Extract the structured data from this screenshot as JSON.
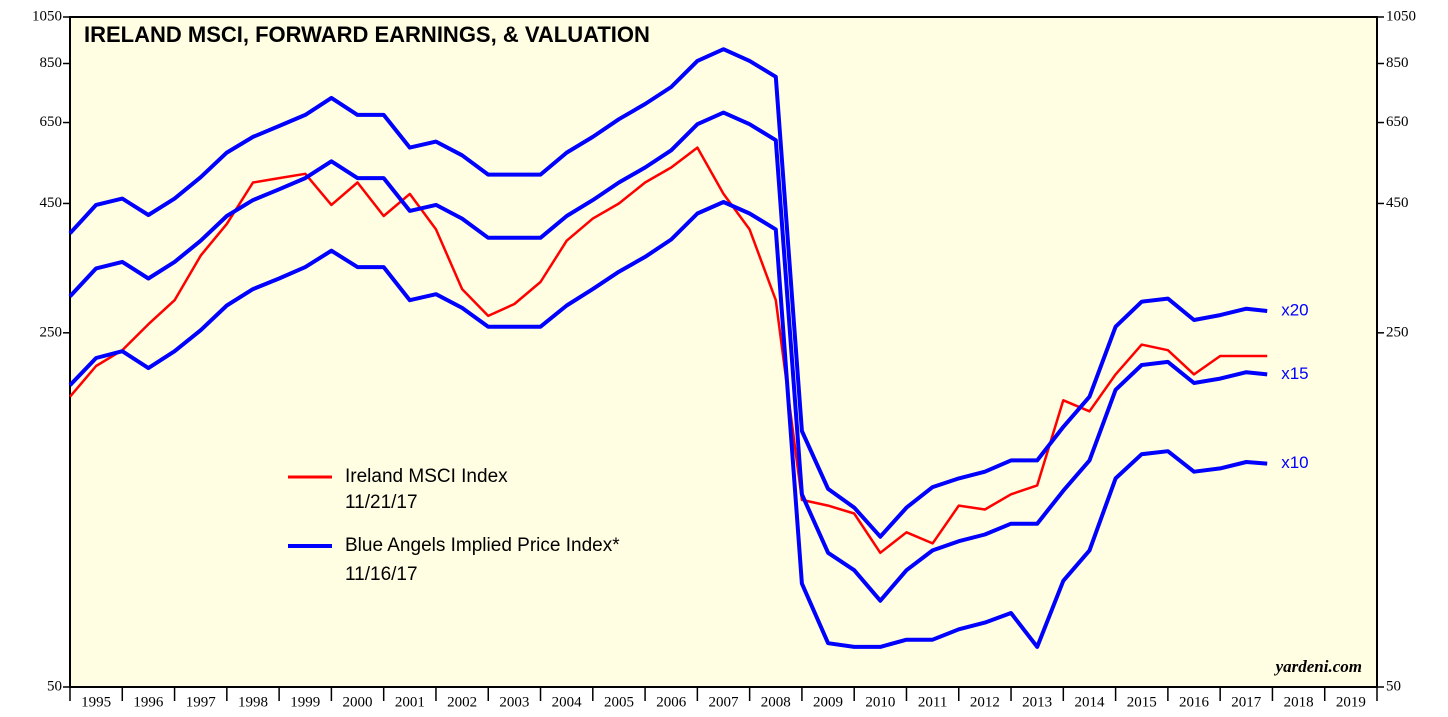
{
  "chart_data": {
    "type": "line",
    "title": "IRELAND MSCI, FORWARD EARNINGS, & VALUATION",
    "source": "yardeni.com",
    "log_scale": true,
    "categories": [
      "1995",
      "1996",
      "1997",
      "1998",
      "1999",
      "2000",
      "2001",
      "2002",
      "2003",
      "2004",
      "2005",
      "2006",
      "2007",
      "2008",
      "2009",
      "2010",
      "2011",
      "2012",
      "2013",
      "2014",
      "2015",
      "2016",
      "2017",
      "2018",
      "2019"
    ],
    "xlim": [
      1995,
      2020
    ],
    "x": [
      1995,
      1995.5,
      1996,
      1996.5,
      1997,
      1997.5,
      1998,
      1998.5,
      1999,
      1999.5,
      2000,
      2000.5,
      2001,
      2001.5,
      2002,
      2002.5,
      2003,
      2003.5,
      2004,
      2004.5,
      2005,
      2005.5,
      2006,
      2006.5,
      2007,
      2007.5,
      2008,
      2008.5,
      2009,
      2009.5,
      2010,
      2010.5,
      2011,
      2011.5,
      2012,
      2012.5,
      2013,
      2013.5,
      2014,
      2014.5,
      2015,
      2015.5,
      2016,
      2016.5,
      2017,
      2017.5,
      2017.9
    ],
    "ylim": [
      50,
      1050
    ],
    "yticks": [
      50,
      250,
      450,
      650,
      850,
      1050
    ],
    "series": [
      {
        "name": "Ireland MSCI Index",
        "color": "#ff0000",
        "values": [
          187,
          215,
          231,
          260,
          290,
          355,
          410,
          495,
          505,
          515,
          447,
          495,
          425,
          470,
          400,
          305,
          270,
          285,
          315,
          380,
          420,
          450,
          495,
          530,
          580,
          470,
          400,
          290,
          117,
          114,
          110,
          92,
          101,
          96,
          114,
          112,
          120,
          125,
          184,
          175,
          207,
          237,
          231,
          207,
          225,
          225,
          225
        ]
      },
      {
        "name": "x20",
        "color": "#0000ff",
        "values": [
          393,
          447,
          460,
          427,
          460,
          507,
          567,
          609,
          640,
          673,
          727,
          673,
          673,
          580,
          596,
          560,
          513,
          513,
          513,
          567,
          609,
          660,
          707,
          764,
          860,
          907,
          860,
          800,
          160,
          123,
          113,
          99,
          113,
          124,
          129,
          133,
          140,
          140,
          163,
          187,
          257,
          288,
          292,
          265,
          271,
          279,
          276
        ]
      },
      {
        "name": "x15",
        "color": "#0000ff",
        "values": [
          295,
          335,
          345,
          320,
          345,
          380,
          425,
          457,
          480,
          505,
          545,
          505,
          505,
          435,
          447,
          420,
          385,
          385,
          385,
          425,
          457,
          495,
          530,
          573,
          645,
          680,
          645,
          600,
          120,
          92,
          85,
          74,
          85,
          93,
          97,
          100,
          105,
          105,
          122,
          140,
          193,
          216,
          219,
          199,
          203,
          209,
          207
        ]
      },
      {
        "name": "x10",
        "color": "#0000ff",
        "values": [
          197,
          223,
          230,
          213,
          230,
          253,
          283,
          305,
          320,
          337,
          363,
          337,
          337,
          290,
          298,
          280,
          257,
          257,
          257,
          283,
          305,
          330,
          353,
          382,
          430,
          453,
          430,
          400,
          80,
          61,
          60,
          60,
          62,
          62,
          65,
          67,
          70,
          60,
          81,
          93,
          129,
          144,
          146,
          133,
          135,
          139,
          138
        ]
      }
    ],
    "legend": [
      {
        "label": "Ireland MSCI Index",
        "date": "11/21/17"
      },
      {
        "label": "Blue Angels Implied Price Index*",
        "date": "11/16/17"
      }
    ]
  }
}
